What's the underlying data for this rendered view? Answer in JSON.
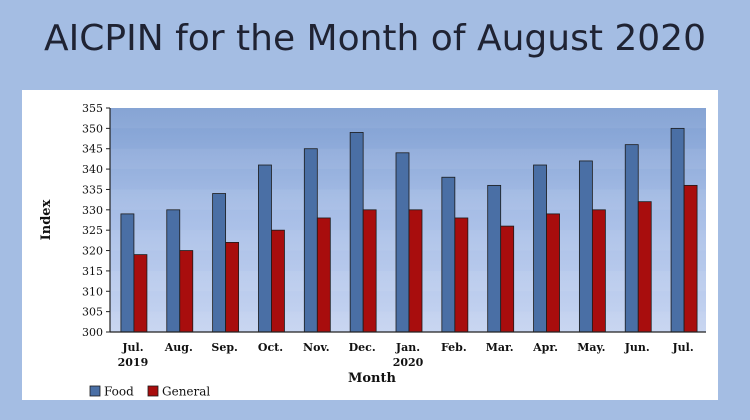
{
  "title": "AICPIN for the Month of August 2020",
  "chart_data": {
    "type": "bar",
    "categories": [
      [
        "Jul.",
        "2019"
      ],
      [
        "Aug."
      ],
      [
        "Sep."
      ],
      [
        "Oct."
      ],
      [
        "Nov."
      ],
      [
        "Dec."
      ],
      [
        "Jan.",
        "2020"
      ],
      [
        "Feb."
      ],
      [
        "Mar."
      ],
      [
        "Apr."
      ],
      [
        "May."
      ],
      [
        "Jun."
      ],
      [
        "Jul."
      ]
    ],
    "series": [
      {
        "name": "Food",
        "color": "#4a6fa5",
        "values": [
          329,
          330,
          334,
          341,
          345,
          349,
          344,
          338,
          336,
          341,
          342,
          346,
          350
        ]
      },
      {
        "name": "General",
        "color": "#a80d0d",
        "values": [
          319,
          320,
          322,
          325,
          328,
          330,
          330,
          328,
          326,
          329,
          330,
          332,
          336
        ]
      }
    ],
    "xlabel": "Month",
    "ylabel": "Index",
    "ylim": [
      300,
      355
    ],
    "yticks": [
      300,
      305,
      310,
      315,
      320,
      325,
      330,
      335,
      340,
      345,
      350,
      355
    ],
    "grid": false,
    "legend": "bottom-left"
  }
}
